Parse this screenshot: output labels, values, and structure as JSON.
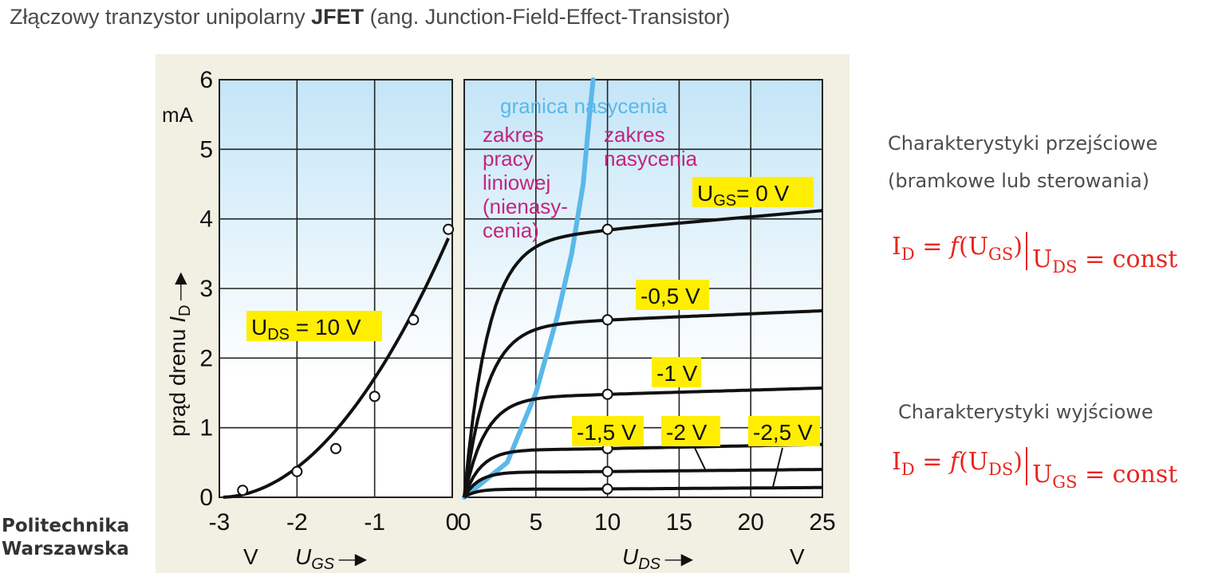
{
  "slide": {
    "title_prefix": "Złączowy tranzystor unipolarny ",
    "title_bold": "JFET",
    "title_suffix": " (ang. Junction-Field-Effect-Transistor)",
    "transfer_caption_1": "Charakterystyki przejściowe",
    "transfer_caption_2": "(bramkowe lub sterowania)",
    "output_caption": "Charakterystyki wyjściowe",
    "f1": {
      "lhs": "I",
      "lhs_sub": "D",
      "eq": " = ",
      "fn": "f",
      "arg": "U",
      "arg_sub": "GS",
      "cond": "U",
      "cond_sub": "DS",
      "cond_rhs": " = const"
    },
    "f2": {
      "lhs": "I",
      "lhs_sub": "D",
      "eq": " = ",
      "fn": "f",
      "arg": "U",
      "arg_sub": "DS",
      "cond": "U",
      "cond_sub": "GS",
      "cond_rhs": " = const"
    },
    "logo_line1": "Politechnika",
    "logo_line2": "Warszawska"
  },
  "colors": {
    "label_highlight": "#ffee00",
    "curve": "#111111",
    "saturation_boundary": "#5ab8ea",
    "magenta_text": "#c2257e",
    "grid": "#222222",
    "bg_top": "#c4e5f7",
    "bg_bottom": "#ffffff"
  },
  "chart_data": [
    {
      "type": "line",
      "id": "transfer",
      "x": [
        -2.7,
        -2.0,
        -1.5,
        -1.0,
        -0.5,
        -0.05
      ],
      "series": [
        {
          "values": [
            0.1,
            0.37,
            0.7,
            1.45,
            2.55,
            3.85
          ]
        }
      ],
      "xticks": [
        "-3",
        "-2",
        "-1",
        "0"
      ],
      "yticks": [
        "0",
        "1",
        "2",
        "3",
        "4",
        "5",
        "6"
      ],
      "xlim": [
        -3,
        0
      ],
      "ylim": [
        0,
        6
      ],
      "y_unit": "mA",
      "x_unit": "V",
      "xlabel": "U",
      "xlabel_sub": "GS",
      "ylabel": "prąd drenu ",
      "ylabel_var": "I",
      "ylabel_sub": "D",
      "param_label": {
        "var": "U",
        "sub": "DS",
        "val": " = 10 V"
      },
      "grid": true
    },
    {
      "type": "line",
      "id": "output",
      "x_points_at": 10,
      "series": [
        {
          "name": "U",
          "name_sub": "GS",
          "name_val": "= 0 V",
          "sat": 3.85,
          "end": 4.12
        },
        {
          "name": "-0,5 V",
          "sat": 2.55,
          "end": 2.68
        },
        {
          "name": "-1 V",
          "sat": 1.48,
          "end": 1.57
        },
        {
          "name": "-1,5 V",
          "sat": 0.7,
          "end": 0.76
        },
        {
          "name": "-2 V",
          "sat": 0.37,
          "end": 0.4
        },
        {
          "name": "-2,5 V",
          "sat": 0.12,
          "end": 0.14
        }
      ],
      "saturation_boundary": {
        "x": [
          0,
          3,
          5,
          6.5,
          7.5,
          8.3,
          8.7,
          9.0
        ],
        "y": [
          0,
          0.5,
          1.5,
          2.6,
          3.5,
          4.5,
          5.4,
          6.0
        ]
      },
      "xticks": [
        "0",
        "5",
        "10",
        "15",
        "20",
        "25"
      ],
      "xlim": [
        0,
        25
      ],
      "ylim": [
        0,
        6
      ],
      "x_unit": "V",
      "xlabel": "U",
      "xlabel_sub": "DS",
      "annotations": {
        "boundary": "granica nasycenia",
        "linear": [
          "zakres",
          "pracy",
          "liniowej",
          "(nienasy-",
          "cenia)"
        ],
        "saturation": [
          "zakres",
          "nasycenia"
        ]
      },
      "grid": true
    }
  ]
}
